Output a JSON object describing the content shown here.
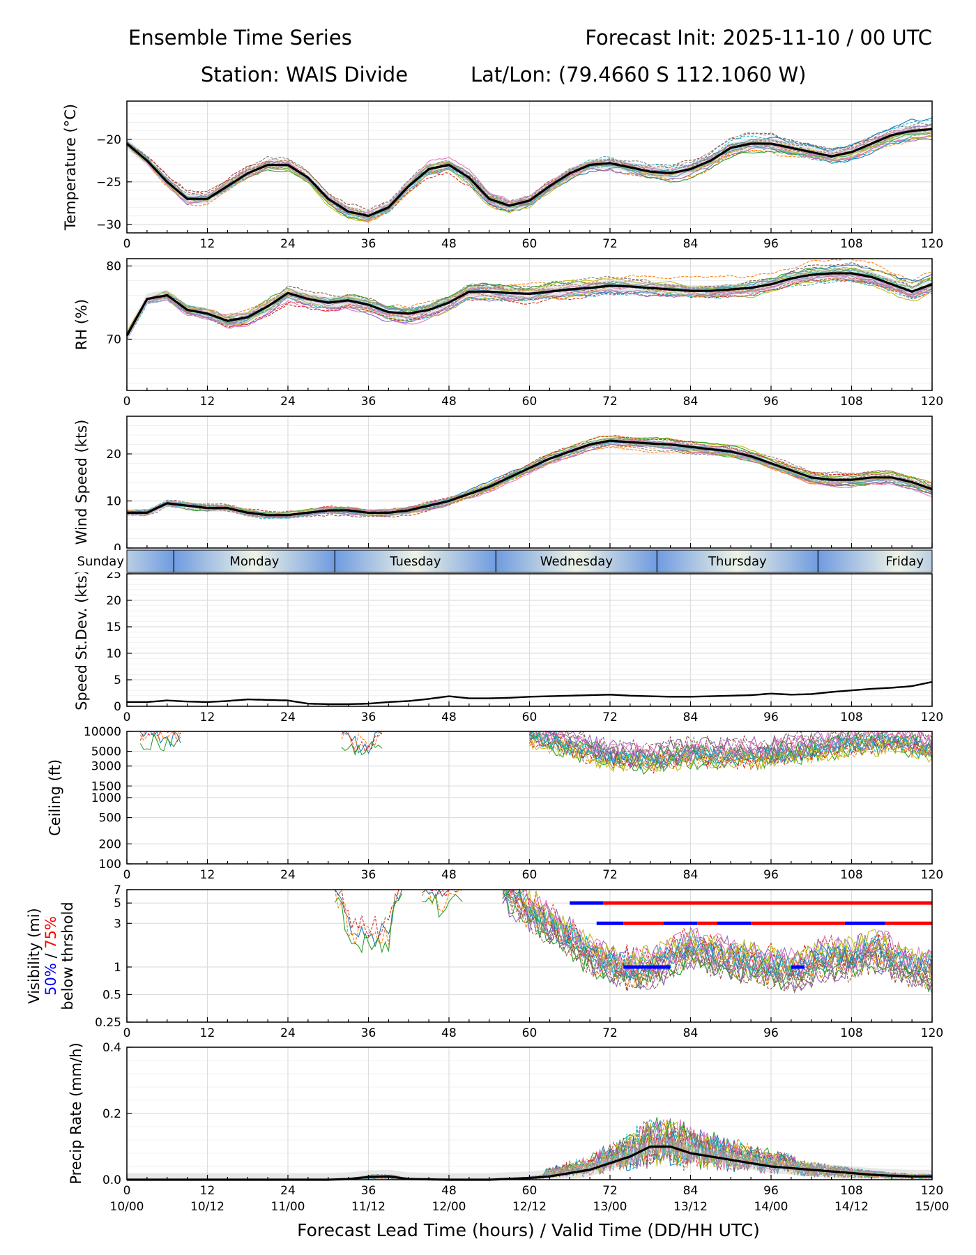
{
  "header": {
    "title_left": "Ensemble Time Series",
    "title_right": "Forecast Init: 2025-11-10 / 00 UTC",
    "station": "Station: WAIS Divide",
    "latlon": "Lat/Lon: (79.4660 S 112.1060 W)"
  },
  "x_ticks": [
    0,
    12,
    24,
    36,
    48,
    60,
    72,
    84,
    96,
    108,
    120
  ],
  "valid_time_labels": [
    "10/00",
    "10/12",
    "11/00",
    "11/12",
    "12/00",
    "12/12",
    "13/00",
    "13/12",
    "14/00",
    "14/12",
    "15/00"
  ],
  "xlabel": "Forecast Lead Time (hours) / Valid Time (DD/HH UTC)",
  "day_band": {
    "days": [
      {
        "label": "Sunday",
        "end": 7
      },
      {
        "label": "Monday",
        "end": 31
      },
      {
        "label": "Tuesday",
        "end": 55
      },
      {
        "label": "Wednesday",
        "end": 79
      },
      {
        "label": "Thursday",
        "end": 103
      },
      {
        "label": "Friday",
        "end": 120
      }
    ],
    "dividers": [
      7,
      31,
      55,
      79,
      103
    ]
  },
  "colors": {
    "mean": "#000000",
    "spread": "#bbbbbb",
    "threshold_50": "#0000ff",
    "threshold_75": "#ff0000",
    "day_blue": "#6f9be0",
    "day_light": "#eef3e6",
    "members": [
      "#1f77b4",
      "#ff7f0e",
      "#2ca02c",
      "#d62728",
      "#9467bd",
      "#8c564b",
      "#e377c2",
      "#7f7f7f",
      "#bcbd22",
      "#17becf"
    ]
  },
  "chart_data": [
    {
      "id": "temperature",
      "type": "line",
      "ylabel": "Temperature (°C)",
      "yscale": "linear",
      "ylim": [
        -31,
        -15.5
      ],
      "yticks": [
        -30,
        -25,
        -20
      ],
      "ytick_labels": [
        "−30",
        "−25",
        "−20"
      ],
      "x": [
        0,
        3,
        6,
        9,
        12,
        15,
        18,
        21,
        24,
        27,
        30,
        33,
        36,
        39,
        42,
        45,
        48,
        51,
        54,
        57,
        60,
        63,
        66,
        69,
        72,
        75,
        78,
        81,
        84,
        87,
        90,
        93,
        96,
        99,
        102,
        105,
        108,
        111,
        114,
        117,
        120
      ],
      "mean": [
        -20.5,
        -22.5,
        -25,
        -27,
        -27,
        -25.5,
        -24,
        -23,
        -23,
        -24.5,
        -27,
        -28.5,
        -29,
        -28,
        -25.5,
        -23.5,
        -23,
        -24.5,
        -27,
        -27.8,
        -27.2,
        -25.5,
        -24,
        -23,
        -22.8,
        -23.3,
        -23.8,
        -24,
        -23.5,
        -22.5,
        -21,
        -20.5,
        -20.5,
        -21,
        -21.5,
        -22,
        -21.5,
        -20.5,
        -19.5,
        -19,
        -18.8
      ],
      "member_spread": 1.2,
      "members": 20
    },
    {
      "id": "rh",
      "type": "line",
      "ylabel": "RH (%)",
      "yscale": "linear",
      "ylim": [
        63,
        81
      ],
      "yticks": [
        70,
        80
      ],
      "ytick_labels": [
        "70",
        "80"
      ],
      "x": [
        0,
        3,
        6,
        9,
        12,
        15,
        18,
        21,
        24,
        27,
        30,
        33,
        36,
        39,
        42,
        45,
        48,
        51,
        54,
        57,
        60,
        63,
        66,
        69,
        72,
        75,
        78,
        81,
        84,
        87,
        90,
        93,
        96,
        99,
        102,
        105,
        108,
        111,
        114,
        117,
        120
      ],
      "mean": [
        70.5,
        75.5,
        76,
        74,
        73.5,
        72.5,
        73,
        74.5,
        76.3,
        75.5,
        75,
        75.3,
        74.7,
        73.7,
        73.5,
        74,
        75,
        76.5,
        76.5,
        76.3,
        76.2,
        76.5,
        76.8,
        77,
        77.3,
        77.2,
        77,
        76.8,
        76.6,
        76.6,
        76.8,
        77,
        77.5,
        78.3,
        78.8,
        79,
        79,
        78.5,
        77.5,
        76.5,
        77.5
      ],
      "member_spread": 1.5,
      "members": 20
    },
    {
      "id": "wind_speed",
      "type": "line",
      "ylabel": "Wind Speed (kts)",
      "yscale": "linear",
      "ylim": [
        0,
        28
      ],
      "yticks": [
        0,
        10,
        20
      ],
      "ytick_labels": [
        "0",
        "10",
        "20"
      ],
      "x": [
        0,
        3,
        6,
        9,
        12,
        15,
        18,
        21,
        24,
        27,
        30,
        33,
        36,
        39,
        42,
        45,
        48,
        51,
        54,
        57,
        60,
        63,
        66,
        69,
        72,
        75,
        78,
        81,
        84,
        87,
        90,
        93,
        96,
        99,
        102,
        105,
        108,
        111,
        114,
        117,
        120
      ],
      "mean": [
        7.5,
        7.5,
        9.5,
        9,
        8.5,
        8.5,
        7.5,
        7,
        7,
        7.5,
        8,
        8,
        7.5,
        7.5,
        8,
        9,
        10,
        11.5,
        13,
        15,
        17,
        19,
        20.5,
        22,
        22.8,
        22.5,
        22.2,
        22,
        21.5,
        21,
        20.5,
        19.5,
        18,
        16.5,
        15,
        14.5,
        14.5,
        15,
        15,
        14,
        12.5
      ],
      "member_spread": 1.5,
      "members": 20
    },
    {
      "id": "speed_stdev",
      "type": "line",
      "ylabel": "Speed St.Dev. (kts)",
      "yscale": "linear",
      "ylim": [
        0,
        25
      ],
      "yticks": [
        0,
        5,
        10,
        15,
        20,
        25
      ],
      "ytick_labels": [
        "0",
        "5",
        "10",
        "15",
        "20",
        "25"
      ],
      "x": [
        0,
        3,
        6,
        9,
        12,
        15,
        18,
        21,
        24,
        27,
        30,
        33,
        36,
        39,
        42,
        45,
        48,
        51,
        54,
        57,
        60,
        63,
        66,
        69,
        72,
        75,
        78,
        81,
        84,
        87,
        90,
        93,
        96,
        99,
        102,
        105,
        108,
        111,
        114,
        117,
        120
      ],
      "mean": [
        0.8,
        0.8,
        1.1,
        0.9,
        0.8,
        1.0,
        1.3,
        1.2,
        1.1,
        0.5,
        0.4,
        0.4,
        0.5,
        0.8,
        1.0,
        1.4,
        1.9,
        1.5,
        1.5,
        1.6,
        1.8,
        1.9,
        2.0,
        2.1,
        2.2,
        2.0,
        1.9,
        1.8,
        1.8,
        1.9,
        2.0,
        2.1,
        2.4,
        2.2,
        2.3,
        2.7,
        3.0,
        3.3,
        3.5,
        3.8,
        4.6
      ],
      "members": 0
    },
    {
      "id": "ceiling",
      "type": "line",
      "ylabel": "Ceiling (ft)",
      "yscale": "log",
      "ylim": [
        100,
        10000
      ],
      "yticks": [
        100,
        200,
        500,
        1000,
        1500,
        3000,
        5000,
        10000
      ],
      "ytick_labels": [
        "100",
        "200",
        "500",
        "1000",
        "1500",
        "3000",
        "5000",
        "10000"
      ],
      "segments": [
        {
          "x": [
            2,
            4,
            6,
            8
          ],
          "y": [
            9500,
            10000,
            9000,
            10000
          ]
        },
        {
          "x": [
            32,
            34,
            36,
            38
          ],
          "y": [
            10000,
            7500,
            6500,
            10000
          ]
        },
        {
          "x": [
            60,
            66,
            72,
            78,
            84,
            90,
            96,
            102,
            108,
            114,
            120
          ],
          "y": [
            10000,
            7000,
            4500,
            4200,
            5000,
            5000,
            5000,
            6000,
            7500,
            8000,
            6000
          ]
        }
      ],
      "members": 20
    },
    {
      "id": "visibility",
      "type": "line",
      "ylabel": "Visibility (mi)",
      "ylabel_50": "50%",
      "ylabel_sep": " / ",
      "ylabel_75": "75%",
      "ylabel2": "below thrshold",
      "yscale": "log",
      "ylim": [
        0.25,
        7
      ],
      "yticks": [
        0.25,
        0.5,
        1,
        3,
        5,
        7
      ],
      "ytick_labels": [
        "0.25",
        "0.5",
        "1",
        "3",
        "5",
        "7"
      ],
      "segments": [
        {
          "x": [
            31,
            33,
            36,
            39,
            41
          ],
          "y": [
            7,
            2.5,
            2,
            2.2,
            7
          ]
        },
        {
          "x": [
            44,
            47,
            50
          ],
          "y": [
            7,
            5,
            7
          ]
        },
        {
          "x": [
            56,
            60,
            64,
            68,
            72,
            76,
            80,
            84,
            88,
            92,
            96,
            100,
            104,
            108,
            112,
            116,
            120
          ],
          "y": [
            7,
            4,
            2.5,
            1.5,
            1.0,
            0.9,
            1.1,
            1.5,
            1.3,
            1.1,
            1.0,
            0.9,
            1.2,
            1.2,
            1.5,
            1.0,
            0.9
          ]
        }
      ],
      "threshold_bars": [
        {
          "level": 5,
          "pct": 50,
          "x": [
            66,
            71
          ]
        },
        {
          "level": 5,
          "pct": 75,
          "x": [
            71,
            120
          ]
        },
        {
          "level": 3,
          "pct": 50,
          "x": [
            70,
            74
          ]
        },
        {
          "level": 3,
          "pct": 75,
          "x": [
            74,
            80
          ]
        },
        {
          "level": 3,
          "pct": 50,
          "x": [
            80,
            85
          ]
        },
        {
          "level": 3,
          "pct": 75,
          "x": [
            85,
            88
          ]
        },
        {
          "level": 3,
          "pct": 50,
          "x": [
            88,
            93
          ]
        },
        {
          "level": 3,
          "pct": 75,
          "x": [
            93,
            107
          ]
        },
        {
          "level": 3,
          "pct": 50,
          "x": [
            107,
            113
          ]
        },
        {
          "level": 3,
          "pct": 75,
          "x": [
            113,
            120
          ]
        },
        {
          "level": 1,
          "pct": 50,
          "x": [
            74,
            81
          ]
        },
        {
          "level": 1,
          "pct": 50,
          "x": [
            99,
            101
          ]
        }
      ],
      "members": 20
    },
    {
      "id": "precip",
      "type": "line",
      "ylabel": "Precip Rate (mm/h)",
      "yscale": "linear",
      "ylim": [
        0,
        0.4
      ],
      "yticks": [
        0,
        0.2,
        0.4
      ],
      "ytick_labels": [
        "0.0",
        "0.2",
        "0.4"
      ],
      "x": [
        0,
        6,
        12,
        18,
        24,
        30,
        33,
        36,
        39,
        42,
        48,
        54,
        60,
        63,
        66,
        69,
        72,
        75,
        78,
        81,
        84,
        87,
        90,
        93,
        96,
        99,
        102,
        105,
        108,
        111,
        114,
        117,
        120
      ],
      "mean": [
        0,
        0,
        0,
        0,
        0,
        0,
        0.002,
        0.008,
        0.01,
        0.002,
        0,
        0,
        0.005,
        0.01,
        0.02,
        0.03,
        0.05,
        0.07,
        0.1,
        0.1,
        0.08,
        0.07,
        0.06,
        0.05,
        0.04,
        0.035,
        0.03,
        0.025,
        0.02,
        0.015,
        0.012,
        0.01,
        0.01
      ],
      "member_spread": 0.04,
      "members": 20
    }
  ]
}
